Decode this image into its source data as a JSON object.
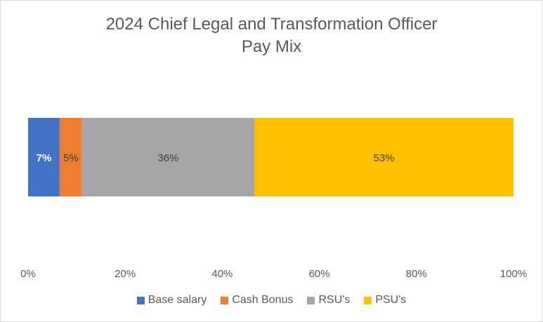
{
  "chart_data": {
    "type": "bar",
    "orientation": "horizontal",
    "stacked": true,
    "title_lines": [
      "2024 Chief Legal and Transformation Officer",
      "Pay Mix"
    ],
    "categories": [
      ""
    ],
    "series": [
      {
        "name": "Base salary",
        "value": 6.5,
        "label": "7%",
        "color": "#4472C4",
        "label_color": "#ffffff",
        "label_bold": true
      },
      {
        "name": "Cash Bonus",
        "value": 4.6,
        "label": "5%",
        "color": "#ED7D31",
        "label_color": "#404040",
        "label_bold": false
      },
      {
        "name": "RSU's",
        "value": 35.5,
        "label": "36%",
        "color": "#A5A5A5",
        "label_color": "#404040",
        "label_bold": false
      },
      {
        "name": "PSU's",
        "value": 53.4,
        "label": "53%",
        "color": "#FFC000",
        "label_color": "#404040",
        "label_bold": false
      }
    ],
    "xlim": [
      0,
      100
    ],
    "x_ticks": [
      "0%",
      "20%",
      "40%",
      "60%",
      "80%",
      "100%"
    ],
    "x_tick_values": [
      0,
      20,
      40,
      60,
      80,
      100
    ],
    "grid": false,
    "legend_position": "bottom"
  }
}
